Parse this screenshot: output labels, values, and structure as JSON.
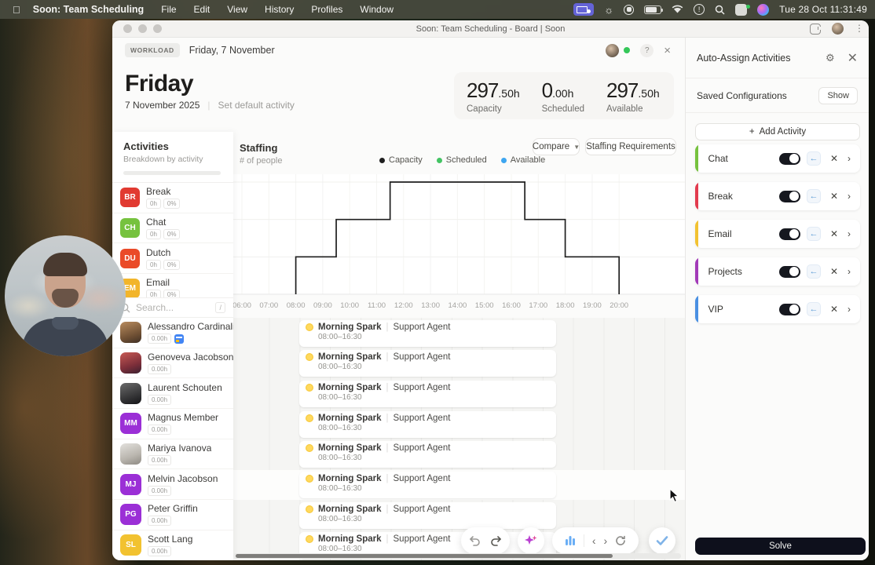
{
  "menu_bar": {
    "app_name": "Soon: Team Scheduling",
    "menus": [
      "File",
      "Edit",
      "View",
      "History",
      "Profiles",
      "Window"
    ],
    "clock": "Tue 28 Oct 11:31:49"
  },
  "window": {
    "title": "Soon: Team Scheduling - Board | Soon"
  },
  "view_header": {
    "badge": "WORKLOAD",
    "date": "Friday, 7 November",
    "help": "?",
    "close": "×"
  },
  "day": {
    "title": "Friday",
    "date": "7 November 2025",
    "separator": "|",
    "set_default_label": "Set default activity"
  },
  "stats": [
    {
      "value": "297",
      "suffix": ".50h",
      "label": "Capacity"
    },
    {
      "value": "0",
      "suffix": ".00h",
      "label": "Scheduled"
    },
    {
      "value": "297",
      "suffix": ".50h",
      "label": "Available"
    }
  ],
  "activities_panel": {
    "title": "Activities",
    "subtitle": "Breakdown by activity",
    "items": [
      {
        "code": "BR",
        "name": "Break",
        "hours": "0h",
        "percent": "0%",
        "color": "#e13a31"
      },
      {
        "code": "CH",
        "name": "Chat",
        "hours": "0h",
        "percent": "0%",
        "color": "#76c23e"
      },
      {
        "code": "DU",
        "name": "Dutch",
        "hours": "0h",
        "percent": "0%",
        "color": "#ea4a28"
      },
      {
        "code": "EM",
        "name": "Email",
        "hours": "0h",
        "percent": "0%",
        "color": "#f2b52a"
      }
    ],
    "search_placeholder": "Search...",
    "search_shortcut": "/"
  },
  "staffing": {
    "title": "Staffing",
    "subtitle": "# of people",
    "compare_label": "Compare",
    "requirements_label": "Staffing Requirements"
  },
  "chart_data": {
    "type": "line",
    "title": "Staffing",
    "ylabel": "# of people",
    "x_ticks": [
      "06:00",
      "07:00",
      "08:00",
      "09:00",
      "10:00",
      "11:00",
      "12:00",
      "13:00",
      "14:00",
      "15:00",
      "16:00",
      "17:00",
      "18:00",
      "19:00",
      "20:00"
    ],
    "x_range_hours": [
      6,
      20.5
    ],
    "ylim": [
      0,
      32
    ],
    "grid": true,
    "legend_position": "top",
    "series": [
      {
        "name": "Capacity",
        "color": "#1f1f1f",
        "steps": [
          {
            "start_hour": 8,
            "end_hour": 9.5,
            "value": 10
          },
          {
            "start_hour": 9.5,
            "end_hour": 11.5,
            "value": 20
          },
          {
            "start_hour": 11.5,
            "end_hour": 16.5,
            "value": 30
          },
          {
            "start_hour": 16.5,
            "end_hour": 18,
            "value": 20
          },
          {
            "start_hour": 18,
            "end_hour": 20,
            "value": 10
          }
        ]
      },
      {
        "name": "Scheduled",
        "color": "#43c463",
        "steps": []
      },
      {
        "name": "Available",
        "color": "#3ea6f0",
        "steps": []
      }
    ]
  },
  "people": [
    {
      "name": "Alessandro Cardinali",
      "hours": "0.00h",
      "avatar": "photo-brown",
      "calendar_icon": true
    },
    {
      "name": "Genoveva Jacobson-K...",
      "hours": "0.00h",
      "avatar": "photo-red"
    },
    {
      "name": "Laurent Schouten",
      "hours": "0.00h",
      "avatar": "photo-dark"
    },
    {
      "name": "Magnus Member",
      "hours": "0.00h",
      "initials": "MM",
      "color": "#9b2fd6"
    },
    {
      "name": "Mariya Ivanova",
      "hours": "0.00h",
      "avatar": "photo-light"
    },
    {
      "name": "Melvin Jacobson",
      "hours": "0.00h",
      "initials": "MJ",
      "color": "#9b2fd6",
      "highlighted": true
    },
    {
      "name": "Peter Griffin",
      "hours": "0.00h",
      "initials": "PG",
      "color": "#9b2fd6"
    },
    {
      "name": "Scott Lang",
      "hours": "0.00h",
      "initials": "SL",
      "color": "#f2c230"
    }
  ],
  "schedule": {
    "event_title": "Morning Spark",
    "role": "Support Agent",
    "time_range": "08:00–16:30",
    "rows": 8
  },
  "auto_assign": {
    "title": "Auto-Assign Activities",
    "saved_configurations_label": "Saved Configurations",
    "show_label": "Show",
    "add_activity_label": "Add Activity",
    "add_plus": "+",
    "activities": [
      {
        "name": "Chat",
        "color": "#76c23e",
        "enabled": true
      },
      {
        "name": "Break",
        "color": "#e23b4e",
        "enabled": true
      },
      {
        "name": "Email",
        "color": "#f2c230",
        "enabled": true
      },
      {
        "name": "Projects",
        "color": "#a23ab8",
        "enabled": true
      },
      {
        "name": "VIP",
        "color": "#4a90e2",
        "enabled": true
      }
    ],
    "solve_label": "Solve"
  }
}
